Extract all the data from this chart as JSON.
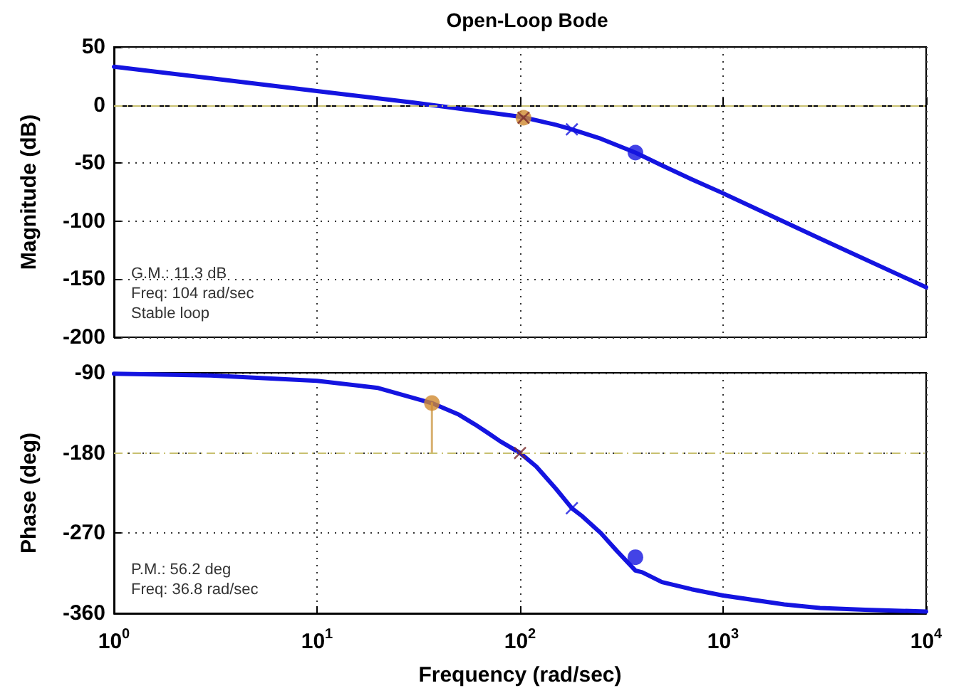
{
  "chart_data": [
    {
      "type": "line",
      "title": "Open-Loop Bode",
      "ylabel": "Magnitude (dB)",
      "log": "x",
      "grid": true,
      "tick_labels": "y",
      "xlim": [
        1,
        10000
      ],
      "xticks": [
        {
          "value": 1,
          "label": null
        },
        {
          "value": 10,
          "label": null
        },
        {
          "value": 100,
          "label": null
        },
        {
          "value": 1000,
          "label": null
        },
        {
          "value": 10000,
          "label": null
        }
      ],
      "ylim": [
        -200,
        50
      ],
      "yticks": [
        -200,
        -150,
        -100,
        -50,
        0,
        50
      ],
      "ref_lines": [
        {
          "axis": "y",
          "value": 0,
          "color": "#c8c070",
          "line_style": "dashed"
        }
      ],
      "annotations": [
        "G.M.: 11.3 dB",
        "Freq: 104 rad/sec",
        "Stable loop"
      ],
      "series": [
        {
          "color": "#1414e0",
          "marker": "none",
          "line_style": "solid",
          "x": [
            1,
            3,
            10,
            30,
            100,
            150,
            180,
            250,
            370,
            500,
            700,
            1000,
            3000,
            10000
          ],
          "values": [
            33,
            23,
            12,
            2,
            -10,
            -17,
            -21,
            -29,
            -41,
            -52,
            -64,
            -76,
            -115,
            -157
          ]
        },
        {
          "type": "scatter",
          "color": "#d08a30",
          "marker": "circle",
          "x": [
            104
          ],
          "values": [
            -11
          ]
        },
        {
          "type": "scatter",
          "color": "#7a2a2a",
          "marker": "cross",
          "x": [
            104
          ],
          "values": [
            -11
          ]
        },
        {
          "type": "scatter",
          "color": "#1414e0",
          "marker": "cross",
          "x": [
            180
          ],
          "values": [
            -21
          ]
        },
        {
          "type": "scatter",
          "color": "#1414e0",
          "marker": "circle",
          "x": [
            370
          ],
          "values": [
            -41
          ]
        }
      ]
    },
    {
      "type": "line",
      "xlabel": "Frequency (rad/sec)",
      "ylabel": "Phase (deg)",
      "log": "x",
      "grid": true,
      "xlim": [
        1,
        10000
      ],
      "xticks": [
        {
          "value": 1,
          "label": "10$^{0}$"
        },
        {
          "value": 10,
          "label": "10$^{1}$"
        },
        {
          "value": 100,
          "label": "10$^{2}$"
        },
        {
          "value": 1000,
          "label": "10$^{3}$"
        },
        {
          "value": 10000,
          "label": "10$^{4}$"
        }
      ],
      "ylim": [
        -360,
        -90
      ],
      "yticks": [
        -360,
        -270,
        -180,
        -90
      ],
      "ref_lines": [
        {
          "axis": "y",
          "value": -180,
          "color": "#c8c070",
          "line_style": "dashed"
        }
      ],
      "annotations": [
        "P.M.: 56.2 deg",
        "Freq: 36.8 rad/sec"
      ],
      "series": [
        {
          "color": "#1414e0",
          "marker": "none",
          "line_style": "solid",
          "x": [
            1,
            3,
            10,
            20,
            36.8,
            50,
            60,
            70,
            80,
            100,
            120,
            150,
            180,
            200,
            250,
            300,
            370,
            400,
            500,
            700,
            1000,
            2000,
            3000,
            5000,
            10000
          ],
          "values": [
            -91,
            -93,
            -99,
            -107,
            -124,
            -137,
            -148,
            -158,
            -167,
            -180,
            -195,
            -220,
            -242,
            -250,
            -270,
            -290,
            -312,
            -314,
            -325,
            -333,
            -340,
            -350,
            -354,
            -356,
            -358
          ]
        },
        {
          "type": "line",
          "color": "#d8b070",
          "marker": "none",
          "line_style": "solid",
          "x": [
            36.8,
            36.8
          ],
          "values": [
            -180,
            -124
          ]
        },
        {
          "type": "scatter",
          "color": "#d08a30",
          "marker": "circle",
          "x": [
            36.8
          ],
          "values": [
            -124
          ]
        },
        {
          "type": "scatter",
          "color": "#7a2a2a",
          "marker": "cross",
          "x": [
            100
          ],
          "values": [
            -180
          ]
        },
        {
          "type": "scatter",
          "color": "#1414e0",
          "marker": "cross",
          "x": [
            180
          ],
          "values": [
            -242
          ]
        },
        {
          "type": "scatter",
          "color": "#1414e0",
          "marker": "circle",
          "x": [
            370
          ],
          "values": [
            -297
          ]
        }
      ]
    }
  ]
}
